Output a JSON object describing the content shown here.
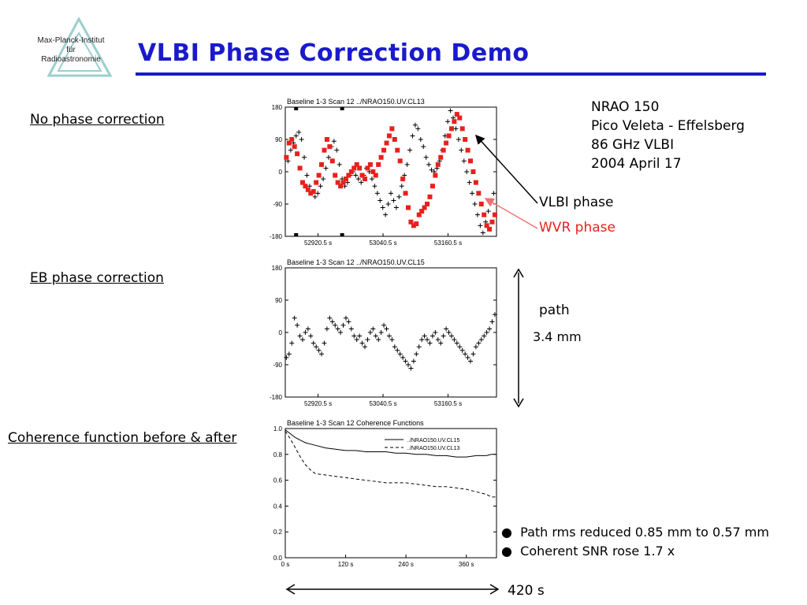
{
  "title": "VLBI Phase Correction Demo",
  "logo": {
    "line1": "Max-Planck-Institut",
    "line2": "für",
    "line3": "Radioastronomie"
  },
  "labels": {
    "no_correction": "No phase correction",
    "eb_correction": "EB phase correction",
    "coherence": "Coherence function before & after"
  },
  "info": {
    "line1": "NRAO 150",
    "line2": "Pico Veleta - Effelsberg",
    "line3": "86 GHz VLBI",
    "line4": "2004 April 17"
  },
  "annotations": {
    "vlbi_phase": "VLBI phase",
    "wvr_phase": "WVR phase",
    "path": "path",
    "path_value": "3.4 mm",
    "bullet1": "Path rms reduced 0.85 mm to 0.57 mm",
    "bullet2": "Coherent SNR rose 1.7 x",
    "duration": "420 s"
  },
  "colors": {
    "title": "#1a1acc",
    "wvr": "#e8201c",
    "wvr_arrow": "#f07070"
  },
  "chart_data": [
    {
      "type": "scatter",
      "header": "Baseline 1-3    Scan 12    ../NRAO150.UV.CL13",
      "yticks": [
        "180",
        "90",
        "0",
        "-90",
        "-180"
      ],
      "xticks": [
        "52920.5 s",
        "53040.5 s",
        "53160.5 s"
      ],
      "ylim": [
        -180,
        180
      ],
      "xlim": [
        52860,
        53250
      ],
      "series": [
        {
          "name": "VLBI phase",
          "marker": "+",
          "color": "#000000",
          "x": [
            52865,
            52870,
            52875,
            52880,
            52885,
            52890,
            52895,
            52900,
            52905,
            52910,
            52915,
            52920,
            52925,
            52930,
            52935,
            52940,
            52945,
            52950,
            52955,
            52960,
            52965,
            52970,
            52975,
            52980,
            52985,
            52990,
            52995,
            53000,
            53005,
            53010,
            53015,
            53020,
            53025,
            53030,
            53035,
            53040,
            53045,
            53050,
            53055,
            53060,
            53065,
            53070,
            53075,
            53080,
            53085,
            53090,
            53095,
            53100,
            53105,
            53110,
            53115,
            53120,
            53125,
            53130,
            53135,
            53140,
            53145,
            53150,
            53155,
            53160,
            53165,
            53170,
            53175,
            53180,
            53185,
            53190,
            53195,
            53200,
            53205,
            53210,
            53215,
            53220,
            53225,
            53230,
            53235,
            53240,
            53245
          ],
          "y": [
            30,
            60,
            80,
            100,
            110,
            90,
            40,
            -10,
            -40,
            -60,
            -70,
            -60,
            -40,
            -20,
            10,
            40,
            70,
            85,
            60,
            20,
            -20,
            -40,
            -30,
            -10,
            0,
            -10,
            -20,
            -30,
            -10,
            10,
            0,
            -20,
            -40,
            -60,
            -80,
            -100,
            -120,
            -90,
            -60,
            -80,
            -100,
            -70,
            -40,
            -10,
            20,
            60,
            100,
            130,
            120,
            90,
            70,
            40,
            20,
            5,
            0,
            10,
            30,
            60,
            100,
            140,
            170,
            150,
            120,
            90,
            60,
            30,
            0,
            -30,
            -60,
            -90,
            -120,
            -150,
            -170,
            -140,
            -110,
            -80,
            -60
          ]
        },
        {
          "name": "WVR phase",
          "marker": "square",
          "color": "#e8201c",
          "x": [
            52862,
            52867,
            52872,
            52877,
            52882,
            52887,
            52892,
            52897,
            52902,
            52907,
            52912,
            52917,
            52922,
            52927,
            52932,
            52937,
            52942,
            52947,
            52952,
            52957,
            52962,
            52967,
            52972,
            52977,
            52982,
            52987,
            52992,
            52997,
            53002,
            53007,
            53012,
            53017,
            53022,
            53027,
            53032,
            53037,
            53042,
            53047,
            53052,
            53057,
            53062,
            53067,
            53072,
            53077,
            53082,
            53087,
            53092,
            53097,
            53102,
            53107,
            53112,
            53117,
            53122,
            53127,
            53132,
            53137,
            53142,
            53147,
            53152,
            53157,
            53162,
            53167,
            53172,
            53177,
            53182,
            53187,
            53192,
            53197,
            53202,
            53207,
            53212,
            53217,
            53222,
            53227,
            53232,
            53237,
            53242,
            53247
          ],
          "y": [
            40,
            80,
            90,
            70,
            50,
            10,
            -30,
            -40,
            -50,
            -60,
            -55,
            -30,
            -10,
            20,
            60,
            90,
            70,
            30,
            -10,
            -30,
            -40,
            -30,
            -20,
            -10,
            0,
            10,
            20,
            10,
            -10,
            -20,
            10,
            20,
            0,
            -10,
            20,
            40,
            60,
            80,
            100,
            120,
            90,
            60,
            30,
            -20,
            -60,
            -100,
            -140,
            -150,
            -145,
            -120,
            -110,
            -100,
            -90,
            -70,
            -40,
            -10,
            20,
            40,
            60,
            80,
            100,
            120,
            140,
            160,
            150,
            120,
            90,
            60,
            30,
            0,
            -30,
            -60,
            -90,
            -120,
            -150,
            -160,
            -140,
            -120
          ]
        }
      ]
    },
    {
      "type": "scatter",
      "header": "Baseline 1-3    Scan 12    ../NRAO150.UV.CL15",
      "yticks": [
        "180",
        "90",
        "0",
        "-90",
        "-180"
      ],
      "xticks": [
        "52920.5 s",
        "53040.5 s",
        "53160.5 s"
      ],
      "ylim": [
        -180,
        180
      ],
      "xlim": [
        52860,
        53250
      ],
      "series": [
        {
          "name": "EB corrected phase",
          "marker": "+",
          "color": "#000000",
          "x": [
            52862,
            52867,
            52872,
            52877,
            52882,
            52887,
            52892,
            52897,
            52902,
            52907,
            52912,
            52917,
            52922,
            52927,
            52932,
            52937,
            52942,
            52947,
            52952,
            52957,
            52962,
            52967,
            52972,
            52977,
            52982,
            52987,
            52992,
            52997,
            53002,
            53007,
            53012,
            53017,
            53022,
            53027,
            53032,
            53037,
            53042,
            53047,
            53052,
            53057,
            53062,
            53067,
            53072,
            53077,
            53082,
            53087,
            53092,
            53097,
            53102,
            53107,
            53112,
            53117,
            53122,
            53127,
            53132,
            53137,
            53142,
            53147,
            53152,
            53157,
            53162,
            53167,
            53172,
            53177,
            53182,
            53187,
            53192,
            53197,
            53202,
            53207,
            53212,
            53217,
            53222,
            53227,
            53232,
            53237,
            53242,
            53247
          ],
          "y": [
            -70,
            -60,
            -30,
            40,
            20,
            -10,
            -20,
            0,
            10,
            -10,
            -30,
            -40,
            -50,
            -60,
            -30,
            10,
            40,
            30,
            20,
            10,
            0,
            20,
            40,
            30,
            10,
            -10,
            -20,
            -10,
            -30,
            -40,
            -20,
            0,
            10,
            -10,
            -20,
            0,
            20,
            10,
            -10,
            -20,
            -40,
            -50,
            -60,
            -70,
            -80,
            -90,
            -100,
            -80,
            -60,
            -40,
            -20,
            -10,
            -20,
            -30,
            -10,
            0,
            -20,
            -30,
            -10,
            10,
            0,
            -10,
            -20,
            -30,
            -40,
            -50,
            -60,
            -70,
            -80,
            -60,
            -40,
            -30,
            -20,
            -10,
            0,
            10,
            30,
            50
          ]
        }
      ]
    },
    {
      "type": "line",
      "header": "Baseline 1-3    Scan 12    Coherence Functions",
      "yticks": [
        "1.0",
        "0.8",
        "0.6",
        "0.4",
        "0.2",
        "0.0"
      ],
      "xticks": [
        "0 s",
        "120 s",
        "240 s",
        "360 s"
      ],
      "ylim": [
        0,
        1
      ],
      "xlim": [
        0,
        420
      ],
      "x": [
        0,
        10,
        20,
        30,
        40,
        50,
        60,
        80,
        100,
        120,
        140,
        160,
        180,
        200,
        220,
        240,
        260,
        280,
        300,
        320,
        340,
        360,
        380,
        400,
        410,
        420
      ],
      "series": [
        {
          "name": "../NRAO150.UV.CL15",
          "style": "solid",
          "values": [
            0.99,
            0.96,
            0.93,
            0.91,
            0.89,
            0.88,
            0.87,
            0.85,
            0.84,
            0.83,
            0.83,
            0.82,
            0.82,
            0.82,
            0.81,
            0.81,
            0.8,
            0.8,
            0.79,
            0.79,
            0.78,
            0.78,
            0.79,
            0.79,
            0.8,
            0.8
          ]
        },
        {
          "name": "../NRAO150.UV.CL13",
          "style": "dashed",
          "values": [
            0.98,
            0.92,
            0.85,
            0.78,
            0.72,
            0.68,
            0.65,
            0.64,
            0.63,
            0.62,
            0.61,
            0.6,
            0.59,
            0.58,
            0.58,
            0.58,
            0.57,
            0.56,
            0.55,
            0.55,
            0.54,
            0.53,
            0.51,
            0.49,
            0.47,
            0.47
          ]
        }
      ]
    }
  ]
}
